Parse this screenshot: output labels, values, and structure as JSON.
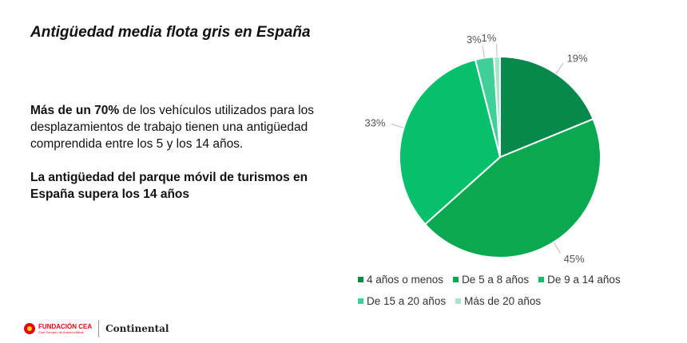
{
  "slide": {
    "title": "Antigüedad media flota gris en España",
    "paragraph1_bold": "Más de un 70%",
    "paragraph1_rest": " de los vehículos utilizados para los desplazamientos de trabajo tienen una antigüedad comprendida entre los 5 y los 14 años.",
    "paragraph2": "La antigüedad del parque móvil de turismos en España supera los 14 años"
  },
  "chart_data": {
    "type": "pie",
    "categories": [
      "4 años o menos",
      "De 5 a 8 años",
      "De 9 a 14 años",
      "De 15 a 20 años",
      "Más de 20 años"
    ],
    "values": [
      19,
      45,
      33,
      3,
      1
    ],
    "labels": [
      "19%",
      "45%",
      "33%",
      "3%",
      "1%"
    ],
    "colors": [
      "#06894a",
      "#0aa84f",
      "#06c06b",
      "#3fd09a",
      "#a6e6c9"
    ],
    "legend_position": "bottom"
  },
  "footer": {
    "cea_name": "FUNDACIÓN CEA",
    "cea_sub": "Club Europeo de Automovilistas",
    "partner": "Continental"
  }
}
